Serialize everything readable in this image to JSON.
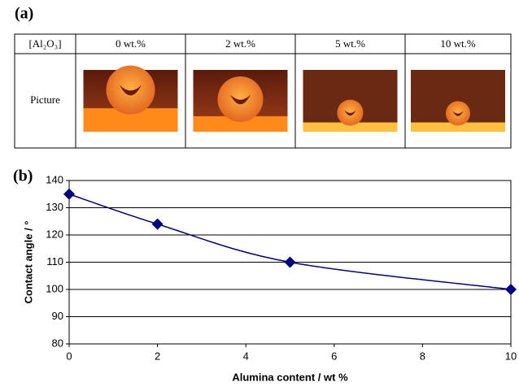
{
  "panel_a": {
    "label": "(a)",
    "table": {
      "header": [
        "[Al₂O₃]",
        "0 wt.%",
        "2 wt.%",
        "5 wt.%",
        "10 wt.%"
      ],
      "row_label": "Picture"
    }
  },
  "chart_data": {
    "type": "line",
    "label": "(b)",
    "x": [
      0,
      2,
      5,
      10
    ],
    "values": [
      135,
      124,
      110,
      100
    ],
    "color": "#000080",
    "xlim": [
      0,
      10
    ],
    "xticks": [
      0,
      2,
      4,
      6,
      8,
      10
    ],
    "ylim": [
      80,
      140
    ],
    "yticks": [
      80,
      90,
      100,
      110,
      120,
      130,
      140
    ],
    "xlabel": "Alumina content / wt %",
    "ylabel": "Contact angle / °",
    "grid": true
  }
}
